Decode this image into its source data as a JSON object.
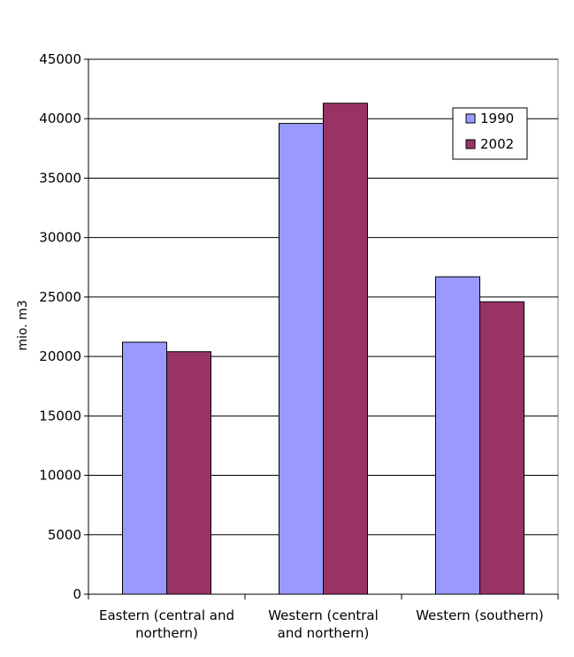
{
  "chart_data": {
    "type": "bar",
    "categories": [
      [
        "Eastern (central and",
        "northern)"
      ],
      [
        "Western (central",
        "and northern)"
      ],
      [
        "Western (southern)"
      ]
    ],
    "series": [
      {
        "name": "1990",
        "color": "#9999ff",
        "values": [
          21200,
          39600,
          26700
        ]
      },
      {
        "name": "2002",
        "color": "#993366",
        "values": [
          20400,
          41300,
          24600
        ]
      }
    ],
    "xlabel": "",
    "ylabel": "mio. m3",
    "ylim": [
      0,
      45000
    ],
    "yticks": [
      0,
      5000,
      10000,
      15000,
      20000,
      25000,
      30000,
      35000,
      40000,
      45000
    ],
    "grid": true,
    "legend_position": "top-right"
  }
}
